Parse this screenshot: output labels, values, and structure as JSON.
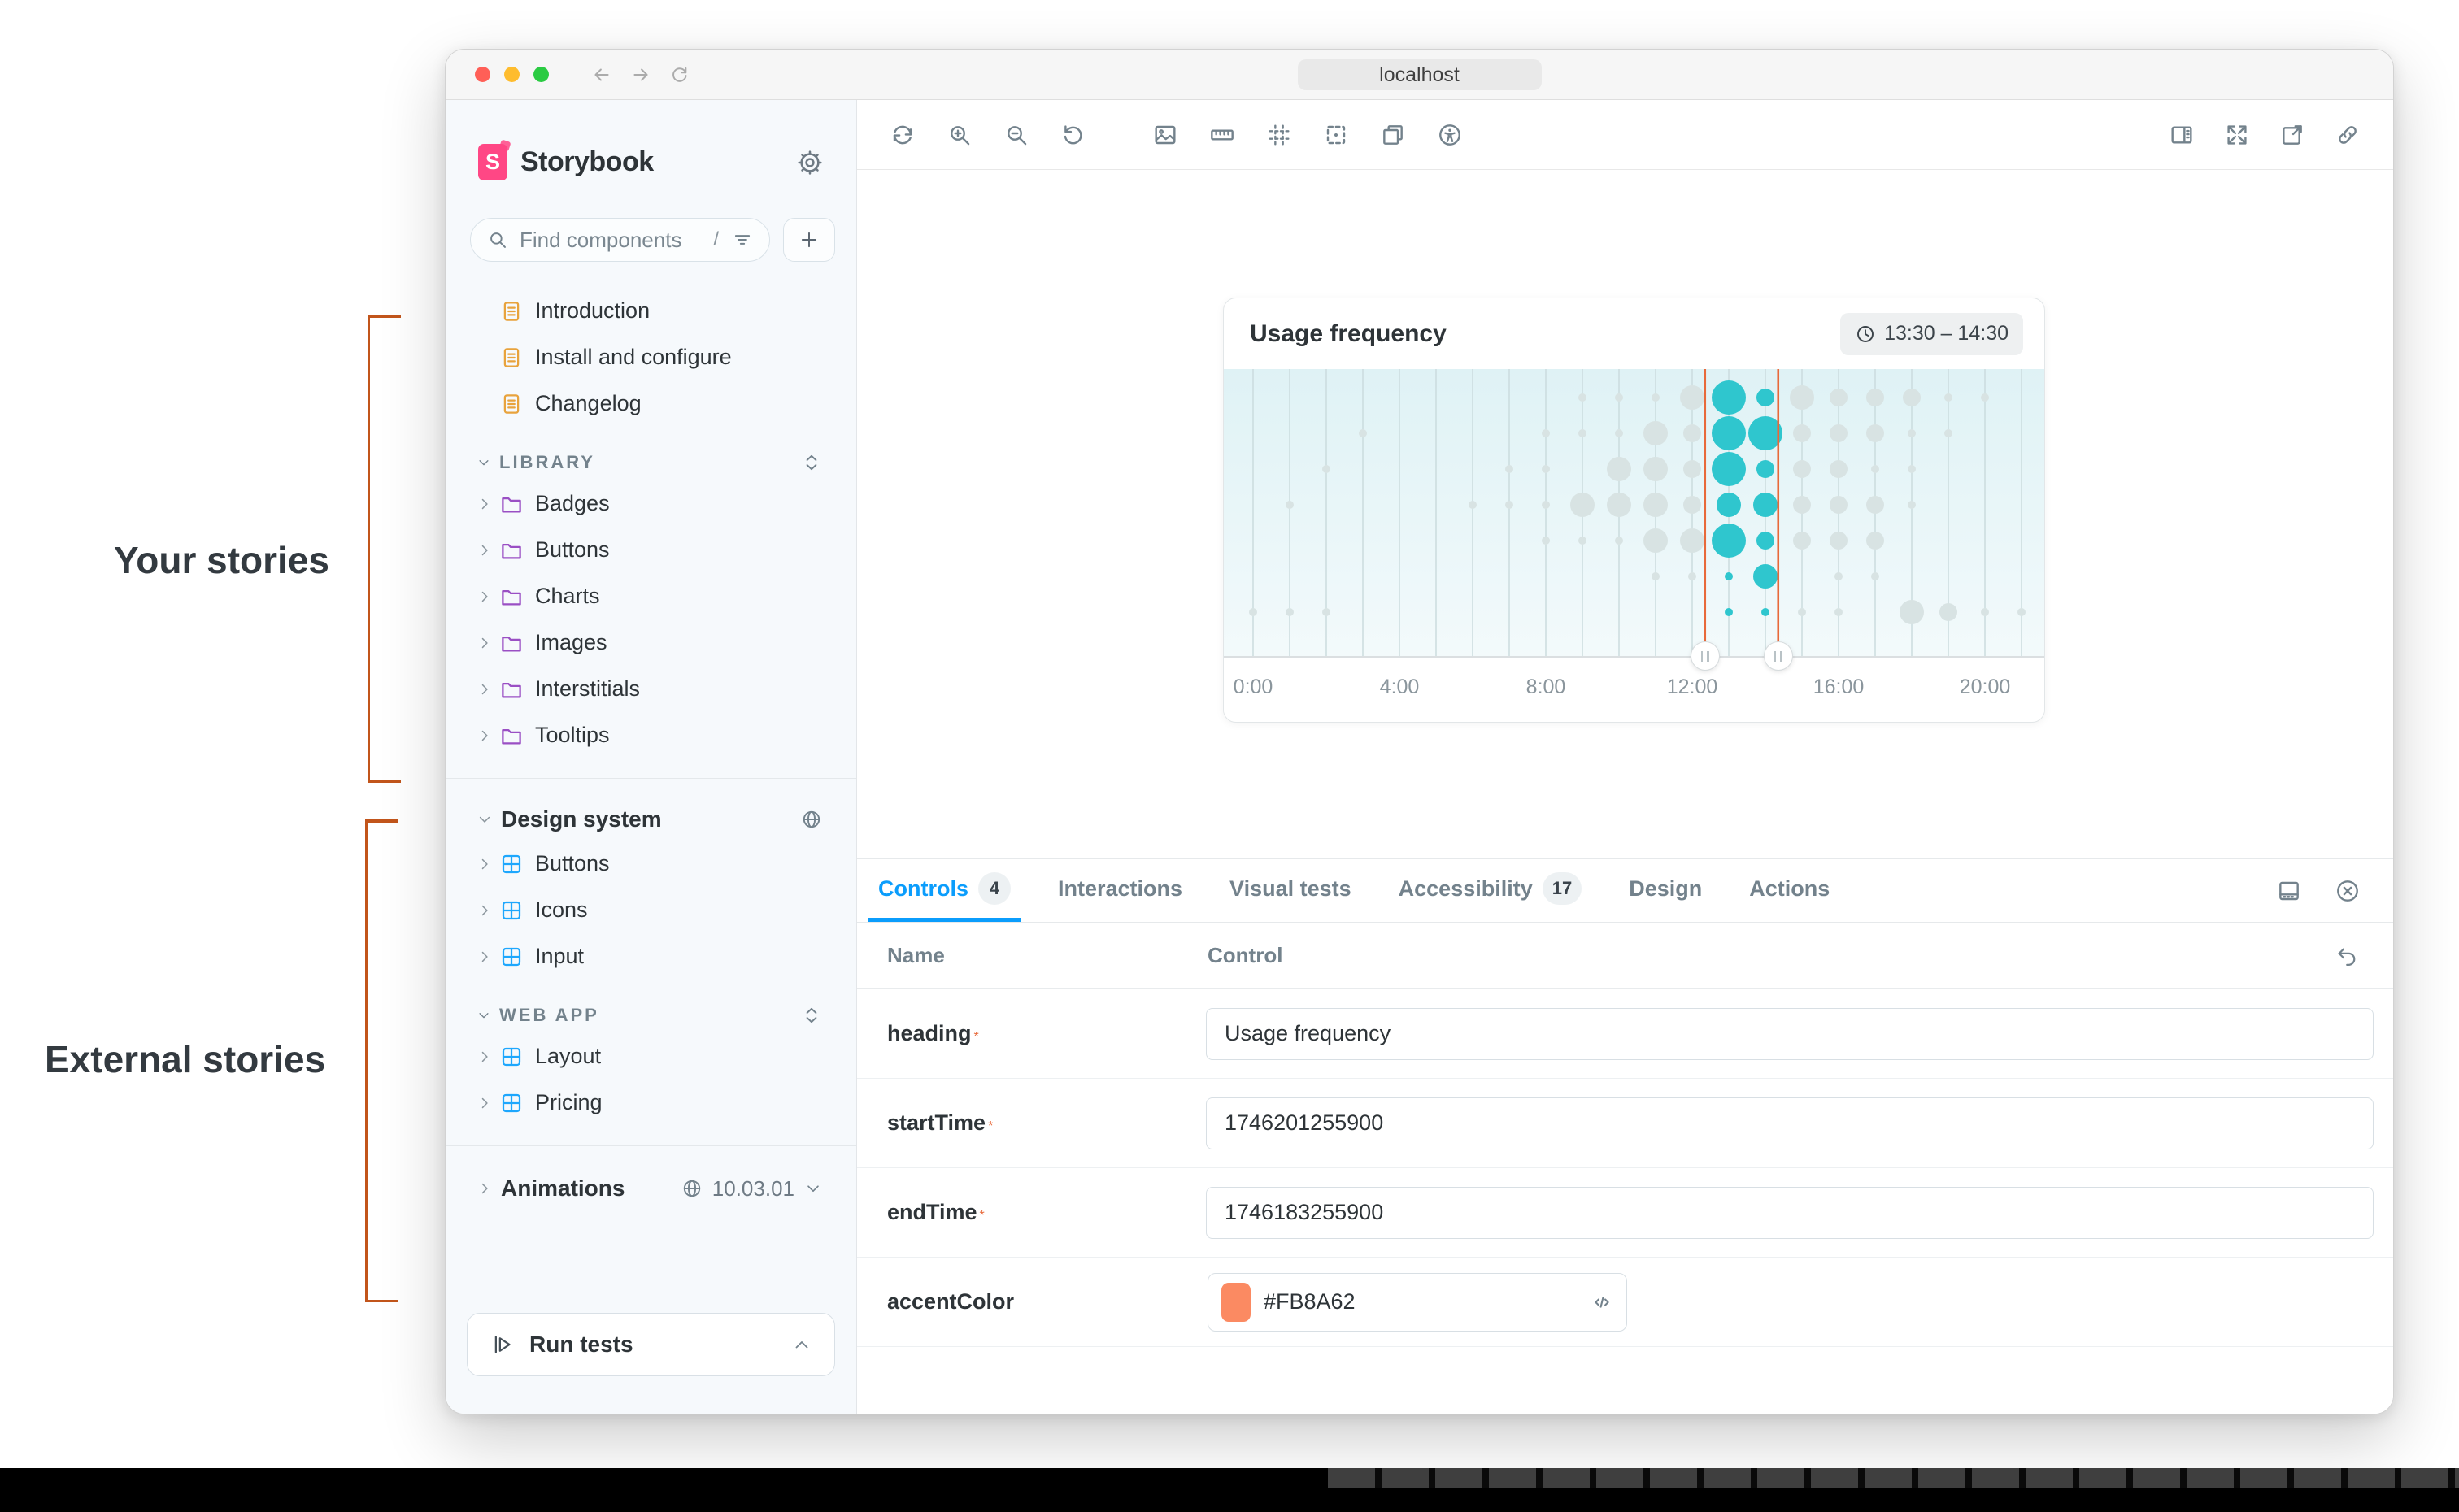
{
  "annotations": {
    "your_stories": "Your stories",
    "external_stories": "External stories",
    "bracket_color": "#C2551B"
  },
  "browser": {
    "address": "localhost",
    "traffic_lights": [
      "#FF5F57",
      "#FEBC2E",
      "#2ACB42"
    ]
  },
  "sidebar": {
    "brand": "Storybook",
    "brand_color": "#FF4785",
    "search": {
      "placeholder": "Find components",
      "shortcut": "/"
    },
    "tree": [
      {
        "kind": "doc",
        "label": "Introduction"
      },
      {
        "kind": "doc",
        "label": "Install and configure"
      },
      {
        "kind": "doc",
        "label": "Changelog"
      },
      {
        "kind": "section",
        "label": "LIBRARY",
        "right": "collapse"
      },
      {
        "kind": "folder",
        "label": "Badges"
      },
      {
        "kind": "folder",
        "label": "Buttons"
      },
      {
        "kind": "folder",
        "label": "Charts"
      },
      {
        "kind": "folder",
        "label": "Images"
      },
      {
        "kind": "folder",
        "label": "Interstitials"
      },
      {
        "kind": "folder",
        "label": "Tooltips"
      },
      {
        "kind": "divider"
      },
      {
        "kind": "root",
        "label": "Design system",
        "right": "globe"
      },
      {
        "kind": "component",
        "label": "Buttons"
      },
      {
        "kind": "component",
        "label": "Icons"
      },
      {
        "kind": "component",
        "label": "Input"
      },
      {
        "kind": "section",
        "label": "WEB APP",
        "right": "collapse"
      },
      {
        "kind": "component",
        "label": "Layout"
      },
      {
        "kind": "component",
        "label": "Pricing"
      },
      {
        "kind": "divider"
      },
      {
        "kind": "ref",
        "label": "Animations",
        "version": "10.03.01"
      }
    ],
    "run_tests_label": "Run tests"
  },
  "toolbar": {
    "left": [
      "remount",
      "zoom-in",
      "zoom-out",
      "zoom-reset",
      "divider",
      "backgrounds",
      "measure",
      "grid",
      "outline",
      "viewports",
      "accessibility"
    ],
    "right": [
      "panel-right",
      "fullscreen",
      "share",
      "link"
    ]
  },
  "chart_data": {
    "type": "scatter",
    "subtype": "bubble-timeline",
    "title": "Usage frequency",
    "time_range_badge": "13:30 – 14:30",
    "x_ticks": [
      "0:00",
      "4:00",
      "8:00",
      "12:00",
      "16:00",
      "20:00"
    ],
    "x_tick_hours": [
      0,
      4,
      8,
      12,
      16,
      20
    ],
    "hours_span": 21,
    "rows": 7,
    "row_offsets": [
      35,
      79,
      123,
      167,
      211,
      255,
      299
    ],
    "selection": {
      "start_hour": 12.35,
      "end_hour": 14.35
    },
    "size_radius": {
      "s": 5,
      "m": 11,
      "l": 15,
      "xl": 21
    },
    "active_color": "#2FC6CE",
    "inactive_color": "#D8E3E3",
    "gridline_color": "#C9DADC",
    "selection_color": "#E8693A",
    "bubbles": [
      {
        "row": 0,
        "hour": 9,
        "size": "s",
        "active": false
      },
      {
        "row": 0,
        "hour": 10,
        "size": "s",
        "active": false
      },
      {
        "row": 0,
        "hour": 11,
        "size": "s",
        "active": false
      },
      {
        "row": 0,
        "hour": 12,
        "size": "l",
        "active": false
      },
      {
        "row": 0,
        "hour": 13,
        "size": "xl",
        "active": true
      },
      {
        "row": 0,
        "hour": 14,
        "size": "m",
        "active": true
      },
      {
        "row": 0,
        "hour": 15,
        "size": "l",
        "active": false
      },
      {
        "row": 0,
        "hour": 16,
        "size": "m",
        "active": false
      },
      {
        "row": 0,
        "hour": 17,
        "size": "m",
        "active": false
      },
      {
        "row": 0,
        "hour": 18,
        "size": "m",
        "active": false
      },
      {
        "row": 0,
        "hour": 19,
        "size": "s",
        "active": false
      },
      {
        "row": 0,
        "hour": 20,
        "size": "s",
        "active": false
      },
      {
        "row": 1,
        "hour": 3,
        "size": "s",
        "active": false
      },
      {
        "row": 1,
        "hour": 8,
        "size": "s",
        "active": false
      },
      {
        "row": 1,
        "hour": 9,
        "size": "s",
        "active": false
      },
      {
        "row": 1,
        "hour": 10,
        "size": "s",
        "active": false
      },
      {
        "row": 1,
        "hour": 11,
        "size": "l",
        "active": false
      },
      {
        "row": 1,
        "hour": 12,
        "size": "m",
        "active": false
      },
      {
        "row": 1,
        "hour": 13,
        "size": "xl",
        "active": true
      },
      {
        "row": 1,
        "hour": 14,
        "size": "xl",
        "active": true
      },
      {
        "row": 1,
        "hour": 15,
        "size": "m",
        "active": false
      },
      {
        "row": 1,
        "hour": 16,
        "size": "m",
        "active": false
      },
      {
        "row": 1,
        "hour": 17,
        "size": "m",
        "active": false
      },
      {
        "row": 1,
        "hour": 18,
        "size": "s",
        "active": false
      },
      {
        "row": 1,
        "hour": 19,
        "size": "s",
        "active": false
      },
      {
        "row": 2,
        "hour": 2,
        "size": "s",
        "active": false
      },
      {
        "row": 2,
        "hour": 7,
        "size": "s",
        "active": false
      },
      {
        "row": 2,
        "hour": 8,
        "size": "s",
        "active": false
      },
      {
        "row": 2,
        "hour": 10,
        "size": "l",
        "active": false
      },
      {
        "row": 2,
        "hour": 11,
        "size": "l",
        "active": false
      },
      {
        "row": 2,
        "hour": 12,
        "size": "m",
        "active": false
      },
      {
        "row": 2,
        "hour": 13,
        "size": "xl",
        "active": true
      },
      {
        "row": 2,
        "hour": 14,
        "size": "m",
        "active": true
      },
      {
        "row": 2,
        "hour": 15,
        "size": "m",
        "active": false
      },
      {
        "row": 2,
        "hour": 16,
        "size": "m",
        "active": false
      },
      {
        "row": 2,
        "hour": 17,
        "size": "s",
        "active": false
      },
      {
        "row": 2,
        "hour": 18,
        "size": "s",
        "active": false
      },
      {
        "row": 3,
        "hour": 1,
        "size": "s",
        "active": false
      },
      {
        "row": 3,
        "hour": 6,
        "size": "s",
        "active": false
      },
      {
        "row": 3,
        "hour": 7,
        "size": "s",
        "active": false
      },
      {
        "row": 3,
        "hour": 8,
        "size": "s",
        "active": false
      },
      {
        "row": 3,
        "hour": 9,
        "size": "l",
        "active": false
      },
      {
        "row": 3,
        "hour": 10,
        "size": "l",
        "active": false
      },
      {
        "row": 3,
        "hour": 11,
        "size": "l",
        "active": false
      },
      {
        "row": 3,
        "hour": 12,
        "size": "m",
        "active": false
      },
      {
        "row": 3,
        "hour": 13,
        "size": "l",
        "active": true
      },
      {
        "row": 3,
        "hour": 14,
        "size": "l",
        "active": true
      },
      {
        "row": 3,
        "hour": 15,
        "size": "m",
        "active": false
      },
      {
        "row": 3,
        "hour": 16,
        "size": "m",
        "active": false
      },
      {
        "row": 3,
        "hour": 17,
        "size": "m",
        "active": false
      },
      {
        "row": 3,
        "hour": 18,
        "size": "s",
        "active": false
      },
      {
        "row": 4,
        "hour": 8,
        "size": "s",
        "active": false
      },
      {
        "row": 4,
        "hour": 9,
        "size": "s",
        "active": false
      },
      {
        "row": 4,
        "hour": 10,
        "size": "s",
        "active": false
      },
      {
        "row": 4,
        "hour": 11,
        "size": "l",
        "active": false
      },
      {
        "row": 4,
        "hour": 12,
        "size": "l",
        "active": false
      },
      {
        "row": 4,
        "hour": 13,
        "size": "xl",
        "active": true
      },
      {
        "row": 4,
        "hour": 14,
        "size": "m",
        "active": true
      },
      {
        "row": 4,
        "hour": 15,
        "size": "m",
        "active": false
      },
      {
        "row": 4,
        "hour": 16,
        "size": "m",
        "active": false
      },
      {
        "row": 4,
        "hour": 17,
        "size": "m",
        "active": false
      },
      {
        "row": 5,
        "hour": 11,
        "size": "s",
        "active": false
      },
      {
        "row": 5,
        "hour": 12,
        "size": "s",
        "active": false
      },
      {
        "row": 5,
        "hour": 13,
        "size": "s",
        "active": true
      },
      {
        "row": 5,
        "hour": 14,
        "size": "l",
        "active": true
      },
      {
        "row": 5,
        "hour": 16,
        "size": "s",
        "active": false
      },
      {
        "row": 5,
        "hour": 17,
        "size": "s",
        "active": false
      },
      {
        "row": 6,
        "hour": 0,
        "size": "s",
        "active": false
      },
      {
        "row": 6,
        "hour": 1,
        "size": "s",
        "active": false
      },
      {
        "row": 6,
        "hour": 2,
        "size": "s",
        "active": false
      },
      {
        "row": 6,
        "hour": 13,
        "size": "s",
        "active": true
      },
      {
        "row": 6,
        "hour": 14,
        "size": "s",
        "active": true
      },
      {
        "row": 6,
        "hour": 15,
        "size": "s",
        "active": false
      },
      {
        "row": 6,
        "hour": 16,
        "size": "s",
        "active": false
      },
      {
        "row": 6,
        "hour": 18,
        "size": "l",
        "active": false
      },
      {
        "row": 6,
        "hour": 19,
        "size": "m",
        "active": false
      },
      {
        "row": 6,
        "hour": 20,
        "size": "s",
        "active": false
      },
      {
        "row": 6,
        "hour": 21,
        "size": "s",
        "active": false
      }
    ]
  },
  "panel": {
    "tabs": [
      {
        "label": "Controls",
        "badge": "4",
        "active": true
      },
      {
        "label": "Interactions",
        "active": false
      },
      {
        "label": "Visual tests",
        "active": false
      },
      {
        "label": "Accessibility",
        "badge": "17",
        "active": false
      },
      {
        "label": "Design",
        "active": false
      },
      {
        "label": "Actions",
        "active": false
      }
    ],
    "right_icons": [
      "panel-bottom",
      "close-circle"
    ],
    "controls": {
      "name_header": "Name",
      "control_header": "Control",
      "rows": [
        {
          "name": "heading",
          "required": true,
          "type": "text",
          "value": "Usage frequency"
        },
        {
          "name": "startTime",
          "required": true,
          "type": "text",
          "value": "1746201255900"
        },
        {
          "name": "endTime",
          "required": true,
          "type": "text",
          "value": "1746183255900"
        },
        {
          "name": "accentColor",
          "required": false,
          "type": "color",
          "value": "#FB8A62"
        }
      ]
    }
  },
  "accent_color": "#FB8A62"
}
